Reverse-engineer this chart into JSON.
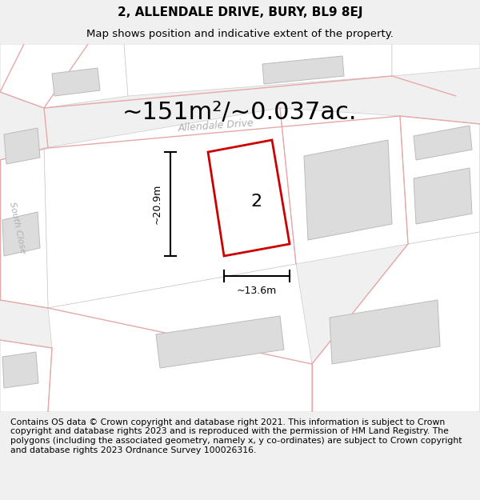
{
  "title": "2, ALLENDALE DRIVE, BURY, BL9 8EJ",
  "subtitle": "Map shows position and indicative extent of the property.",
  "area_text": "~151m²/~0.037ac.",
  "width_label": "~13.6m",
  "height_label": "~20.9m",
  "number_label": "2",
  "footer_text": "Contains OS data © Crown copyright and database right 2021. This information is subject to Crown copyright and database rights 2023 and is reproduced with the permission of HM Land Registry. The polygons (including the associated geometry, namely x, y co-ordinates) are subject to Crown copyright and database rights 2023 Ordnance Survey 100026316.",
  "bg_color": "#f0f0f0",
  "map_bg": "#f0f0f0",
  "highlight_color": "#cc0000",
  "street_label_allendale": "Allendale Drive",
  "street_label_south": "South Close",
  "title_fontsize": 11,
  "subtitle_fontsize": 9.5,
  "area_fontsize": 22,
  "footer_fontsize": 7.8,
  "road_fill": "#ffffff",
  "building_fill": "#dcdcdc",
  "building_edge": "#bbbbbb",
  "road_outline": "#e8a8a8",
  "parcel_edge": "#cccccc",
  "road_lw": 1.0
}
